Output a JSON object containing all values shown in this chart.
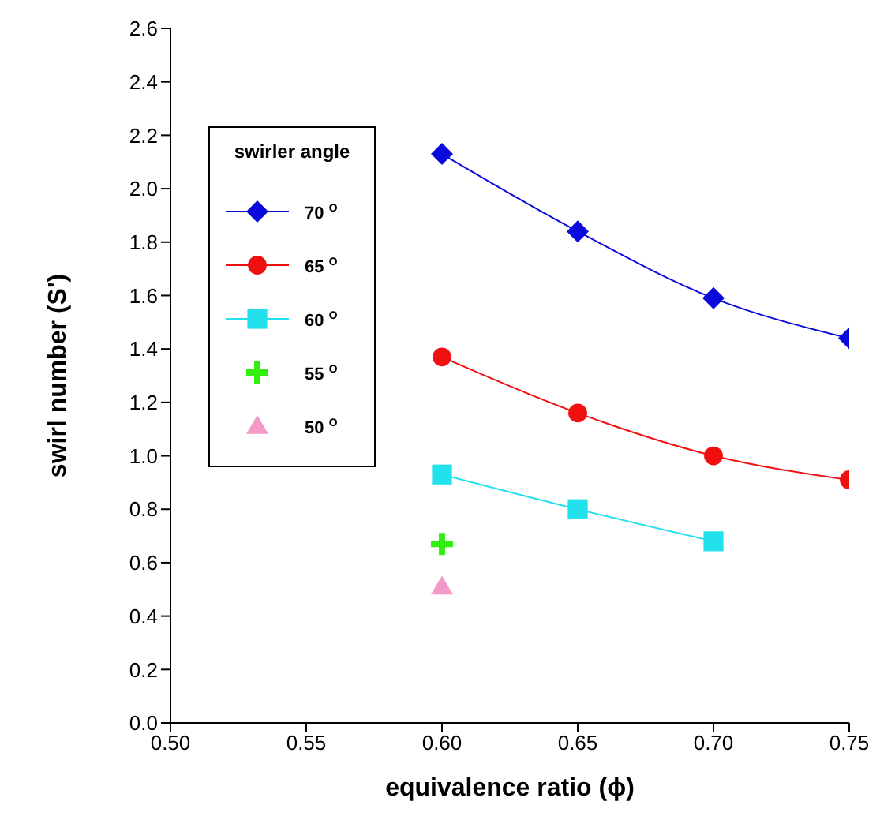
{
  "chart_data": {
    "type": "line",
    "xlabel": "equivalence ratio (ϕ)",
    "ylabel": "swirl number (S')",
    "legend_title": "swirler angle",
    "legend": "top left",
    "grid": false,
    "xlim": [
      0.5,
      0.75
    ],
    "xticks": [
      {
        "value": 0.5,
        "label": "0.50"
      },
      {
        "value": 0.55,
        "label": "0.55"
      },
      {
        "value": 0.6,
        "label": "0.60"
      },
      {
        "value": 0.65,
        "label": "0.65"
      },
      {
        "value": 0.7,
        "label": "0.70"
      },
      {
        "value": 0.75,
        "label": "0.75"
      }
    ],
    "ylim": [
      0,
      2.6
    ],
    "yticks": [
      {
        "value": 0,
        "label": "0.0"
      },
      {
        "value": 0.2,
        "label": "0.2"
      },
      {
        "value": 0.4,
        "label": "0.4"
      },
      {
        "value": 0.6,
        "label": "0.6"
      },
      {
        "value": 0.8,
        "label": "0.8"
      },
      {
        "value": 1,
        "label": "1.0"
      },
      {
        "value": 1.2,
        "label": "1.2"
      },
      {
        "value": 1.4,
        "label": "1.4"
      },
      {
        "value": 1.6,
        "label": "1.6"
      },
      {
        "value": 1.8,
        "label": "1.8"
      },
      {
        "value": 2,
        "label": "2.0"
      },
      {
        "value": 2.2,
        "label": "2.2"
      },
      {
        "value": 2.4,
        "label": "2.4"
      },
      {
        "value": 2.6,
        "label": "2.6"
      }
    ],
    "series": [
      {
        "name": "70 $^{o}$",
        "type": "line",
        "marker": "diamond",
        "color": "#0a0adc",
        "x": [
          0.6,
          0.65,
          0.7,
          0.75
        ],
        "values": [
          2.13,
          1.84,
          1.59,
          1.44
        ]
      },
      {
        "name": "65 $^{o}$",
        "type": "line",
        "marker": "circle",
        "color": "#f01010",
        "x": [
          0.6,
          0.65,
          0.7,
          0.75
        ],
        "values": [
          1.37,
          1.16,
          1.0,
          0.91
        ]
      },
      {
        "name": "60 $^{o}$",
        "type": "line",
        "marker": "square",
        "color": "#22e0ec",
        "x": [
          0.6,
          0.65,
          0.7
        ],
        "values": [
          0.93,
          0.8,
          0.68
        ]
      },
      {
        "name": "55 $^{o}$",
        "type": "scatter",
        "marker": "cross",
        "color": "#33ee11",
        "x": [
          0.6
        ],
        "values": [
          0.67
        ]
      },
      {
        "name": "50 $^{o}$",
        "type": "scatter",
        "marker": "triangle",
        "color": "#f599c8",
        "x": [
          0.6
        ],
        "values": [
          0.51
        ]
      }
    ]
  }
}
